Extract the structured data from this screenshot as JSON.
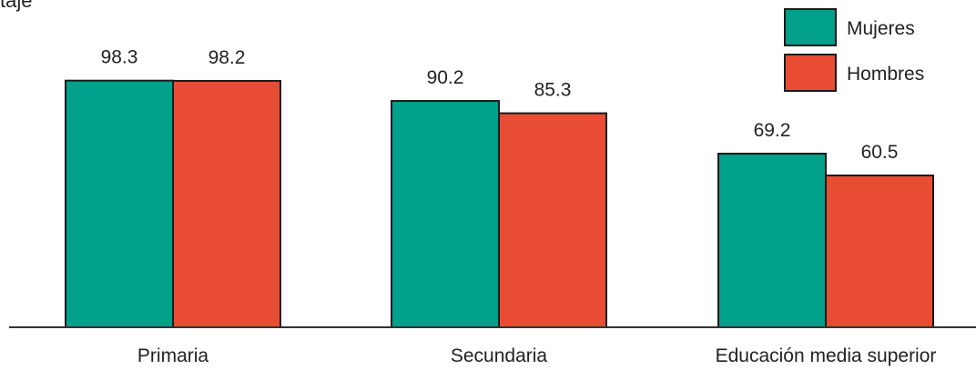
{
  "chart_data": {
    "type": "bar",
    "ylabel": "taje",
    "categories": [
      "Primaria",
      "Secundaria",
      "Educación media superior"
    ],
    "series": [
      {
        "name": "Mujeres",
        "values": [
          98.3,
          90.2,
          69.2
        ],
        "color": "#00A08A"
      },
      {
        "name": "Hombres",
        "values": [
          98.2,
          85.3,
          60.5
        ],
        "color": "#E84C33"
      }
    ],
    "data_labels": [
      [
        "98.3",
        "90.2",
        "69.2"
      ],
      [
        "98.2",
        "85.3",
        "60.5"
      ]
    ],
    "ylim": [
      0,
      100
    ],
    "grid": false,
    "legend_position": "top-right"
  }
}
